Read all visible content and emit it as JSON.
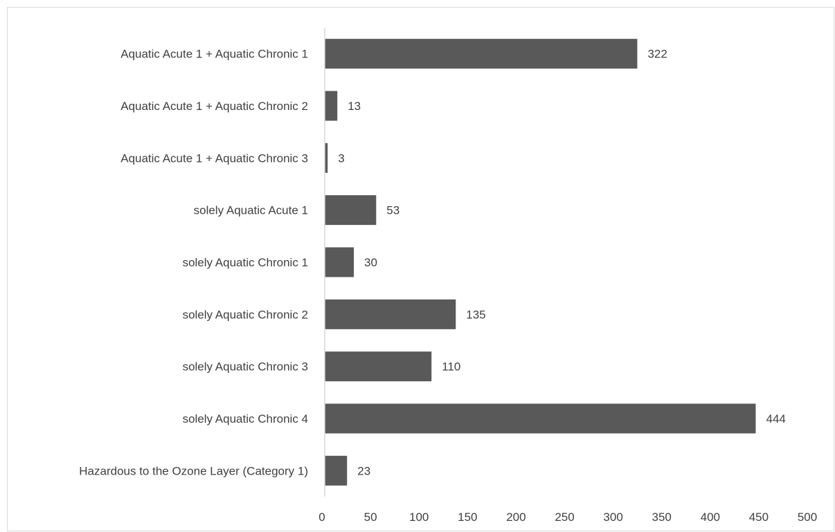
{
  "chart_data": {
    "type": "bar",
    "orientation": "horizontal",
    "title": "",
    "xlabel": "",
    "ylabel": "",
    "categories": [
      "Aquatic Acute 1 + Aquatic Chronic 1",
      "Aquatic Acute 1 + Aquatic Chronic 2",
      "Aquatic Acute 1 + Aquatic Chronic 3",
      "solely Aquatic Acute 1",
      "solely Aquatic Chronic 1",
      "solely Aquatic Chronic 2",
      "solely Aquatic Chronic 3",
      "solely Aquatic Chronic 4",
      "Hazardous to the Ozone Layer (Category 1)"
    ],
    "values": [
      322,
      13,
      3,
      53,
      30,
      135,
      110,
      444,
      23
    ],
    "value_labels": [
      "322",
      "13",
      "3",
      "53",
      "30",
      "135",
      "110",
      "444",
      "23"
    ],
    "xlim": [
      0,
      500
    ],
    "xticks": [
      "0",
      "50",
      "100",
      "150",
      "200",
      "250",
      "300",
      "350",
      "400",
      "450",
      "500"
    ],
    "grid": false,
    "legend": "none",
    "bar_color": "#595959",
    "axis_color": "#d9d9d9",
    "text_color": "#404040"
  }
}
